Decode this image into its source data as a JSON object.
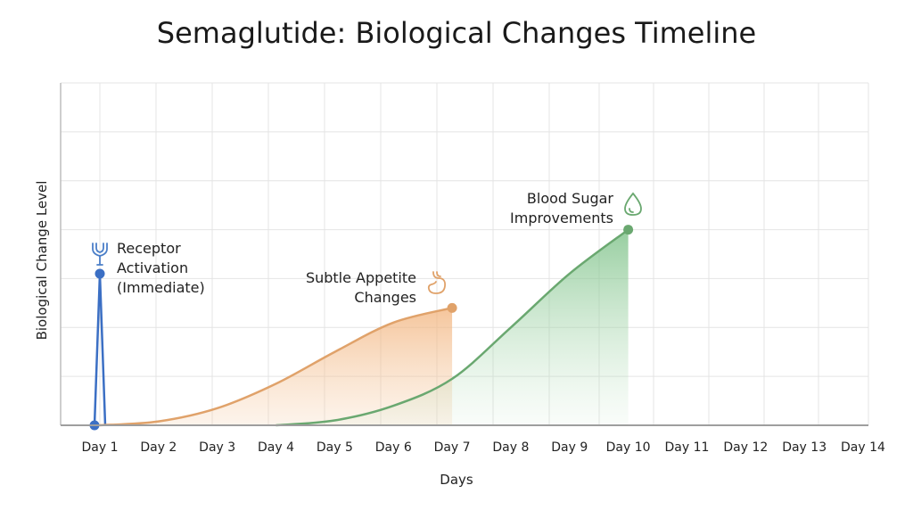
{
  "chart_data": {
    "type": "area",
    "title": "Semaglutide: Biological Changes Timeline",
    "xlabel": "Days",
    "ylabel": "Biological Change Level",
    "categories": [
      "Day 1",
      "Day 2",
      "Day 3",
      "Day 4",
      "Day 5",
      "Day 6",
      "Day 7",
      "Day 8",
      "Day 9",
      "Day 10",
      "Day 11",
      "Day 12",
      "Day 13",
      "Day 14"
    ],
    "ylim": [
      0,
      7
    ],
    "grid": true,
    "series": [
      {
        "color": "#3b6fc4",
        "style": "spike",
        "x": [
          1,
          1.1,
          1.2
        ],
        "y": [
          0,
          3.1,
          0
        ],
        "annotation": [
          "Receptor",
          "Activation",
          "(Immediate)"
        ],
        "icon": "receptor-icon"
      },
      {
        "color": "#e0a26a",
        "style": "area",
        "x": [
          1,
          2,
          3,
          4,
          5,
          6,
          7
        ],
        "y": [
          0,
          0.08,
          0.35,
          0.85,
          1.5,
          2.1,
          2.4
        ],
        "annotation": [
          "Subtle Appetite",
          "Changes"
        ],
        "icon": "stomach-icon"
      },
      {
        "color": "#6aa870",
        "style": "area",
        "x": [
          4,
          5,
          6,
          7,
          8,
          9,
          10
        ],
        "y": [
          0,
          0.1,
          0.4,
          0.95,
          2.0,
          3.1,
          4.0
        ],
        "annotation": [
          "Blood Sugar",
          "Improvements"
        ],
        "icon": "droplet-icon"
      }
    ]
  }
}
